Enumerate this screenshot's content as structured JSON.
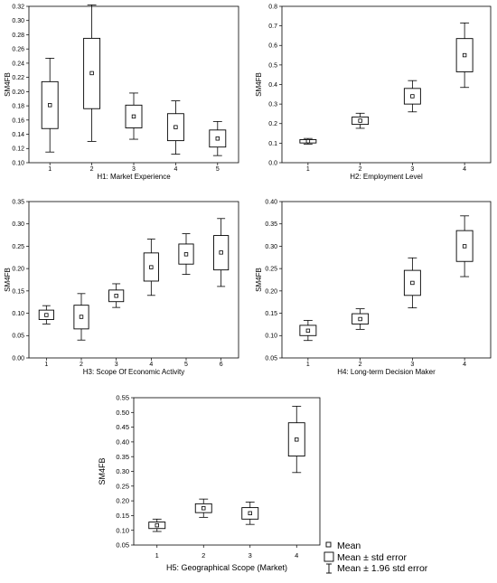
{
  "chart_data": [
    {
      "id": "h1",
      "type": "boxplot",
      "title": "",
      "xlabel": "H1: Market Experience",
      "ylabel": "SM4FB",
      "ylim": [
        0.1,
        0.32
      ],
      "yticks": [
        "0.10",
        "0.12",
        "0.14",
        "0.16",
        "0.18",
        "0.20",
        "0.22",
        "0.24",
        "0.26",
        "0.28",
        "0.30",
        "0.32"
      ],
      "categories": [
        "1",
        "2",
        "3",
        "4",
        "5"
      ],
      "boxes": [
        {
          "mean": 0.181,
          "se_low": 0.148,
          "se_high": 0.214,
          "ci_low": 0.115,
          "ci_high": 0.247
        },
        {
          "mean": 0.226,
          "se_low": 0.176,
          "se_high": 0.275,
          "ci_low": 0.13,
          "ci_high": 0.322
        },
        {
          "mean": 0.165,
          "se_low": 0.149,
          "se_high": 0.181,
          "ci_low": 0.133,
          "ci_high": 0.198
        },
        {
          "mean": 0.15,
          "se_low": 0.131,
          "se_high": 0.169,
          "ci_low": 0.112,
          "ci_high": 0.187
        },
        {
          "mean": 0.134,
          "se_low": 0.122,
          "se_high": 0.146,
          "ci_low": 0.11,
          "ci_high": 0.158
        }
      ]
    },
    {
      "id": "h2",
      "type": "boxplot",
      "title": "",
      "xlabel": "H2: Employment Level",
      "ylabel": "SM4FB",
      "ylim": [
        0.0,
        0.8
      ],
      "yticks": [
        "0.0",
        "0.1",
        "0.2",
        "0.3",
        "0.4",
        "0.5",
        "0.6",
        "0.7",
        "0.8"
      ],
      "categories": [
        "1",
        "2",
        "3",
        "4"
      ],
      "boxes": [
        {
          "mean": 0.11,
          "se_low": 0.101,
          "se_high": 0.118,
          "ci_low": 0.095,
          "ci_high": 0.124
        },
        {
          "mean": 0.215,
          "se_low": 0.196,
          "se_high": 0.234,
          "ci_low": 0.176,
          "ci_high": 0.253
        },
        {
          "mean": 0.34,
          "se_low": 0.3,
          "se_high": 0.38,
          "ci_low": 0.26,
          "ci_high": 0.42
        },
        {
          "mean": 0.55,
          "se_low": 0.465,
          "se_high": 0.635,
          "ci_low": 0.385,
          "ci_high": 0.715
        }
      ]
    },
    {
      "id": "h3",
      "type": "boxplot",
      "title": "",
      "xlabel": "H3: Scope Of Economic Activity",
      "ylabel": "SM4FB",
      "ylim": [
        0.0,
        0.35
      ],
      "yticks": [
        "0.00",
        "0.05",
        "0.10",
        "0.15",
        "0.20",
        "0.25",
        "0.30",
        "0.35"
      ],
      "categories": [
        "1",
        "2",
        "3",
        "4",
        "5",
        "6"
      ],
      "boxes": [
        {
          "mean": 0.096,
          "se_low": 0.086,
          "se_high": 0.107,
          "ci_low": 0.076,
          "ci_high": 0.117
        },
        {
          "mean": 0.092,
          "se_low": 0.065,
          "se_high": 0.118,
          "ci_low": 0.04,
          "ci_high": 0.144
        },
        {
          "mean": 0.139,
          "se_low": 0.126,
          "se_high": 0.152,
          "ci_low": 0.113,
          "ci_high": 0.166
        },
        {
          "mean": 0.203,
          "se_low": 0.172,
          "se_high": 0.235,
          "ci_low": 0.14,
          "ci_high": 0.266
        },
        {
          "mean": 0.232,
          "se_low": 0.21,
          "se_high": 0.255,
          "ci_low": 0.187,
          "ci_high": 0.278
        },
        {
          "mean": 0.236,
          "se_low": 0.197,
          "se_high": 0.274,
          "ci_low": 0.16,
          "ci_high": 0.312
        }
      ]
    },
    {
      "id": "h4",
      "type": "boxplot",
      "title": "",
      "xlabel": "H4: Long-term Decision Maker",
      "ylabel": "SM4FB",
      "ylim": [
        0.05,
        0.4
      ],
      "yticks": [
        "0.05",
        "0.10",
        "0.15",
        "0.20",
        "0.25",
        "0.30",
        "0.35",
        "0.40"
      ],
      "categories": [
        "1",
        "2",
        "3",
        "4"
      ],
      "boxes": [
        {
          "mean": 0.111,
          "se_low": 0.1,
          "se_high": 0.123,
          "ci_low": 0.089,
          "ci_high": 0.134
        },
        {
          "mean": 0.137,
          "se_low": 0.126,
          "se_high": 0.149,
          "ci_low": 0.114,
          "ci_high": 0.16
        },
        {
          "mean": 0.218,
          "se_low": 0.19,
          "se_high": 0.246,
          "ci_low": 0.162,
          "ci_high": 0.274
        },
        {
          "mean": 0.3,
          "se_low": 0.266,
          "se_high": 0.335,
          "ci_low": 0.232,
          "ci_high": 0.368
        }
      ]
    },
    {
      "id": "h5",
      "type": "boxplot",
      "title": "",
      "xlabel": "H5: Geographical Scope (Market)",
      "ylabel": "SM4FB",
      "ylim": [
        0.05,
        0.55
      ],
      "yticks": [
        "0.05",
        "0.10",
        "0.15",
        "0.20",
        "0.25",
        "0.30",
        "0.35",
        "0.40",
        "0.45",
        "0.50",
        "0.55"
      ],
      "categories": [
        "1",
        "2",
        "3",
        "4"
      ],
      "boxes": [
        {
          "mean": 0.117,
          "se_low": 0.106,
          "se_high": 0.128,
          "ci_low": 0.096,
          "ci_high": 0.138
        },
        {
          "mean": 0.175,
          "se_low": 0.16,
          "se_high": 0.19,
          "ci_low": 0.144,
          "ci_high": 0.206
        },
        {
          "mean": 0.158,
          "se_low": 0.138,
          "se_high": 0.177,
          "ci_low": 0.12,
          "ci_high": 0.196
        },
        {
          "mean": 0.408,
          "se_low": 0.352,
          "se_high": 0.465,
          "ci_low": 0.296,
          "ci_high": 0.521
        }
      ]
    }
  ],
  "legend": {
    "placement": "bottom-right",
    "items": [
      "Mean",
      "Mean ± std error",
      "Mean ± 1.96 std error"
    ]
  }
}
